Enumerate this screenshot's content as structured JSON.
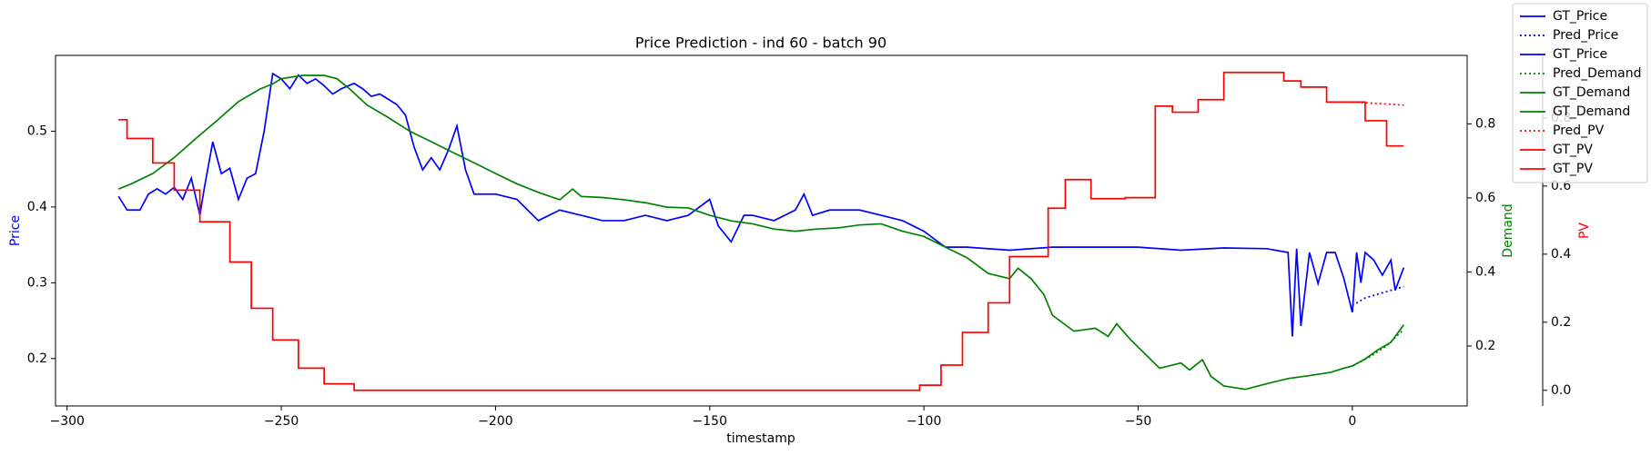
{
  "chart_data": {
    "type": "line",
    "title": "Price Prediction - ind 60 - batch 90",
    "xlabel": "timestamp",
    "xlim": [
      -302.7,
      26.8
    ],
    "xticks": [
      {
        "value": -300,
        "label": "−300"
      },
      {
        "value": -250,
        "label": "−250"
      },
      {
        "value": -200,
        "label": "−200"
      },
      {
        "value": -150,
        "label": "−150"
      },
      {
        "value": -100,
        "label": "−100"
      },
      {
        "value": -50,
        "label": "−50"
      },
      0
    ],
    "ylabel": "Price",
    "ylim": [
      0.1375,
      0.6
    ],
    "yticks": [
      0.2,
      0.3,
      0.4,
      0.5
    ],
    "y2label": "Demand",
    "y2lim": [
      0.038,
      0.985
    ],
    "y2ticks": [
      0.2,
      0.4,
      0.6,
      0.8
    ],
    "y3label": "PV",
    "y3lim": [
      -0.046,
      0.984
    ],
    "y3ticks": [
      {
        "value": 0,
        "label": "0.0"
      },
      0.2,
      0.4,
      0.6,
      0.8
    ],
    "legend": "upper right",
    "series": [
      {
        "name": "GT_Price",
        "color": "#0000ff",
        "linestyle": "solid",
        "axis": "y",
        "drawstyle": "default",
        "x": [
          -288,
          -286,
          -283,
          -281,
          -279,
          -277,
          -275,
          -273,
          -271,
          -269,
          -268,
          -266,
          -264,
          -262,
          -260,
          -258,
          -256,
          -254,
          -252,
          -250,
          -248,
          -246,
          -244,
          -242,
          -240,
          -238,
          -236,
          -233,
          -231,
          -229,
          -227,
          -225,
          -223,
          -221,
          -219,
          -217,
          -215,
          -213,
          -211,
          -209,
          -207,
          -205,
          -200,
          -195,
          -190,
          -185,
          -180,
          -175,
          -170,
          -165,
          -160,
          -155,
          -150,
          -148,
          -145,
          -142,
          -140,
          -135,
          -130,
          -128,
          -126,
          -122,
          -120,
          -115,
          -110,
          -105,
          -100,
          -95,
          -90,
          -80,
          -70,
          -60,
          -50,
          -40,
          -30,
          -20,
          -15,
          -14,
          -13,
          -12,
          -10,
          -8,
          -6,
          -4,
          -2,
          0
        ],
        "values": [
          0.414,
          0.396,
          0.396,
          0.417,
          0.424,
          0.417,
          0.426,
          0.41,
          0.438,
          0.389,
          0.424,
          0.486,
          0.444,
          0.451,
          0.41,
          0.438,
          0.444,
          0.5,
          0.576,
          0.569,
          0.556,
          0.574,
          0.563,
          0.569,
          0.56,
          0.549,
          0.556,
          0.563,
          0.556,
          0.546,
          0.549,
          0.542,
          0.535,
          0.521,
          0.479,
          0.449,
          0.465,
          0.449,
          0.475,
          0.507,
          0.449,
          0.417,
          0.417,
          0.41,
          0.382,
          0.396,
          0.389,
          0.382,
          0.382,
          0.389,
          0.382,
          0.389,
          0.41,
          0.375,
          0.354,
          0.389,
          0.389,
          0.382,
          0.396,
          0.417,
          0.389,
          0.396,
          0.396,
          0.396,
          0.389,
          0.382,
          0.368,
          0.347,
          0.347,
          0.343,
          0.347,
          0.347,
          0.347,
          0.343,
          0.346,
          0.345,
          0.34,
          0.229,
          0.345,
          0.243,
          0.34,
          0.299,
          0.34,
          0.34,
          0.306,
          0.261
        ]
      },
      {
        "name": "Pred_Price",
        "color": "#0000ff",
        "linestyle": "dotted",
        "axis": "y",
        "drawstyle": "default",
        "x": [
          0,
          3,
          6,
          9,
          12
        ],
        "values": [
          0.27,
          0.28,
          0.285,
          0.29,
          0.295
        ]
      },
      {
        "name": "GT_Price",
        "color": "#0000ff",
        "linestyle": "solid",
        "axis": "y",
        "drawstyle": "default",
        "x": [
          0,
          1,
          2,
          3,
          5,
          7,
          9,
          10,
          12
        ],
        "values": [
          0.261,
          0.34,
          0.3,
          0.34,
          0.33,
          0.31,
          0.33,
          0.29,
          0.32
        ]
      },
      {
        "name": "Pred_Demand",
        "color": "#008000",
        "linestyle": "dotted",
        "axis": "y2",
        "drawstyle": "default",
        "x": [
          0,
          4,
          8,
          12
        ],
        "values": [
          0.146,
          0.17,
          0.2,
          0.245
        ]
      },
      {
        "name": "GT_Demand",
        "color": "#008000",
        "linestyle": "solid",
        "axis": "y2",
        "drawstyle": "default",
        "x": [
          -288,
          -285,
          -280,
          -275,
          -270,
          -265,
          -260,
          -255,
          -252,
          -250,
          -245,
          -240,
          -237,
          -234,
          -230,
          -225,
          -220,
          -215,
          -210,
          -205,
          -200,
          -195,
          -190,
          -185,
          -182,
          -180,
          -175,
          -170,
          -165,
          -160,
          -155,
          -150,
          -145,
          -140,
          -135,
          -130,
          -125,
          -120,
          -115,
          -110,
          -105,
          -100,
          -95,
          -90,
          -85,
          -80,
          -78,
          -75,
          -72,
          -70,
          -65,
          -60,
          -57,
          -55,
          -52,
          -50,
          -45,
          -40,
          -38,
          -35,
          -33,
          -30,
          -25,
          -20,
          -15,
          -10,
          -5,
          -2,
          0
        ],
        "values": [
          0.624,
          0.638,
          0.666,
          0.709,
          0.76,
          0.809,
          0.86,
          0.894,
          0.908,
          0.922,
          0.931,
          0.931,
          0.922,
          0.894,
          0.851,
          0.817,
          0.78,
          0.752,
          0.723,
          0.695,
          0.666,
          0.638,
          0.615,
          0.595,
          0.624,
          0.604,
          0.601,
          0.595,
          0.587,
          0.575,
          0.573,
          0.553,
          0.538,
          0.53,
          0.516,
          0.51,
          0.516,
          0.519,
          0.527,
          0.53,
          0.51,
          0.496,
          0.467,
          0.439,
          0.396,
          0.382,
          0.41,
          0.382,
          0.339,
          0.283,
          0.24,
          0.248,
          0.226,
          0.26,
          0.22,
          0.197,
          0.14,
          0.154,
          0.135,
          0.163,
          0.118,
          0.092,
          0.083,
          0.098,
          0.112,
          0.12,
          0.129,
          0.14,
          0.146
        ]
      },
      {
        "name": "GT_Demand",
        "color": "#008000",
        "linestyle": "solid",
        "axis": "y2",
        "drawstyle": "default",
        "x": [
          0,
          3,
          6,
          9,
          12
        ],
        "values": [
          0.146,
          0.165,
          0.19,
          0.21,
          0.257
        ]
      },
      {
        "name": "Pred_PV",
        "color": "#ff0000",
        "linestyle": "dotted",
        "axis": "y3",
        "drawstyle": "default",
        "x": [
          0,
          4,
          8,
          12
        ],
        "values": [
          0.847,
          0.844,
          0.841,
          0.838
        ]
      },
      {
        "name": "GT_PV",
        "color": "#ff0000",
        "linestyle": "solid",
        "axis": "y3",
        "drawstyle": "steps-post",
        "x": [
          -288,
          -286,
          -280,
          -275,
          -269,
          -262,
          -257,
          -252,
          -246,
          -240,
          -233,
          -101,
          -96,
          -91,
          -85,
          -80,
          -71,
          -67,
          -61,
          -53,
          -46,
          -42,
          -36,
          -30,
          -16,
          -12,
          -6,
          0
        ],
        "values": [
          0.795,
          0.74,
          0.668,
          0.588,
          0.495,
          0.377,
          0.241,
          0.148,
          0.065,
          0.019,
          0,
          0.015,
          0.074,
          0.17,
          0.257,
          0.393,
          0.535,
          0.619,
          0.563,
          0.566,
          0.835,
          0.817,
          0.854,
          0.934,
          0.909,
          0.891,
          0.847,
          0.847
        ]
      },
      {
        "name": "GT_PV",
        "color": "#ff0000",
        "linestyle": "solid",
        "axis": "y3",
        "drawstyle": "steps-post",
        "x": [
          0,
          3,
          8,
          12
        ],
        "values": [
          0.847,
          0.792,
          0.718,
          0.718
        ]
      }
    ]
  }
}
